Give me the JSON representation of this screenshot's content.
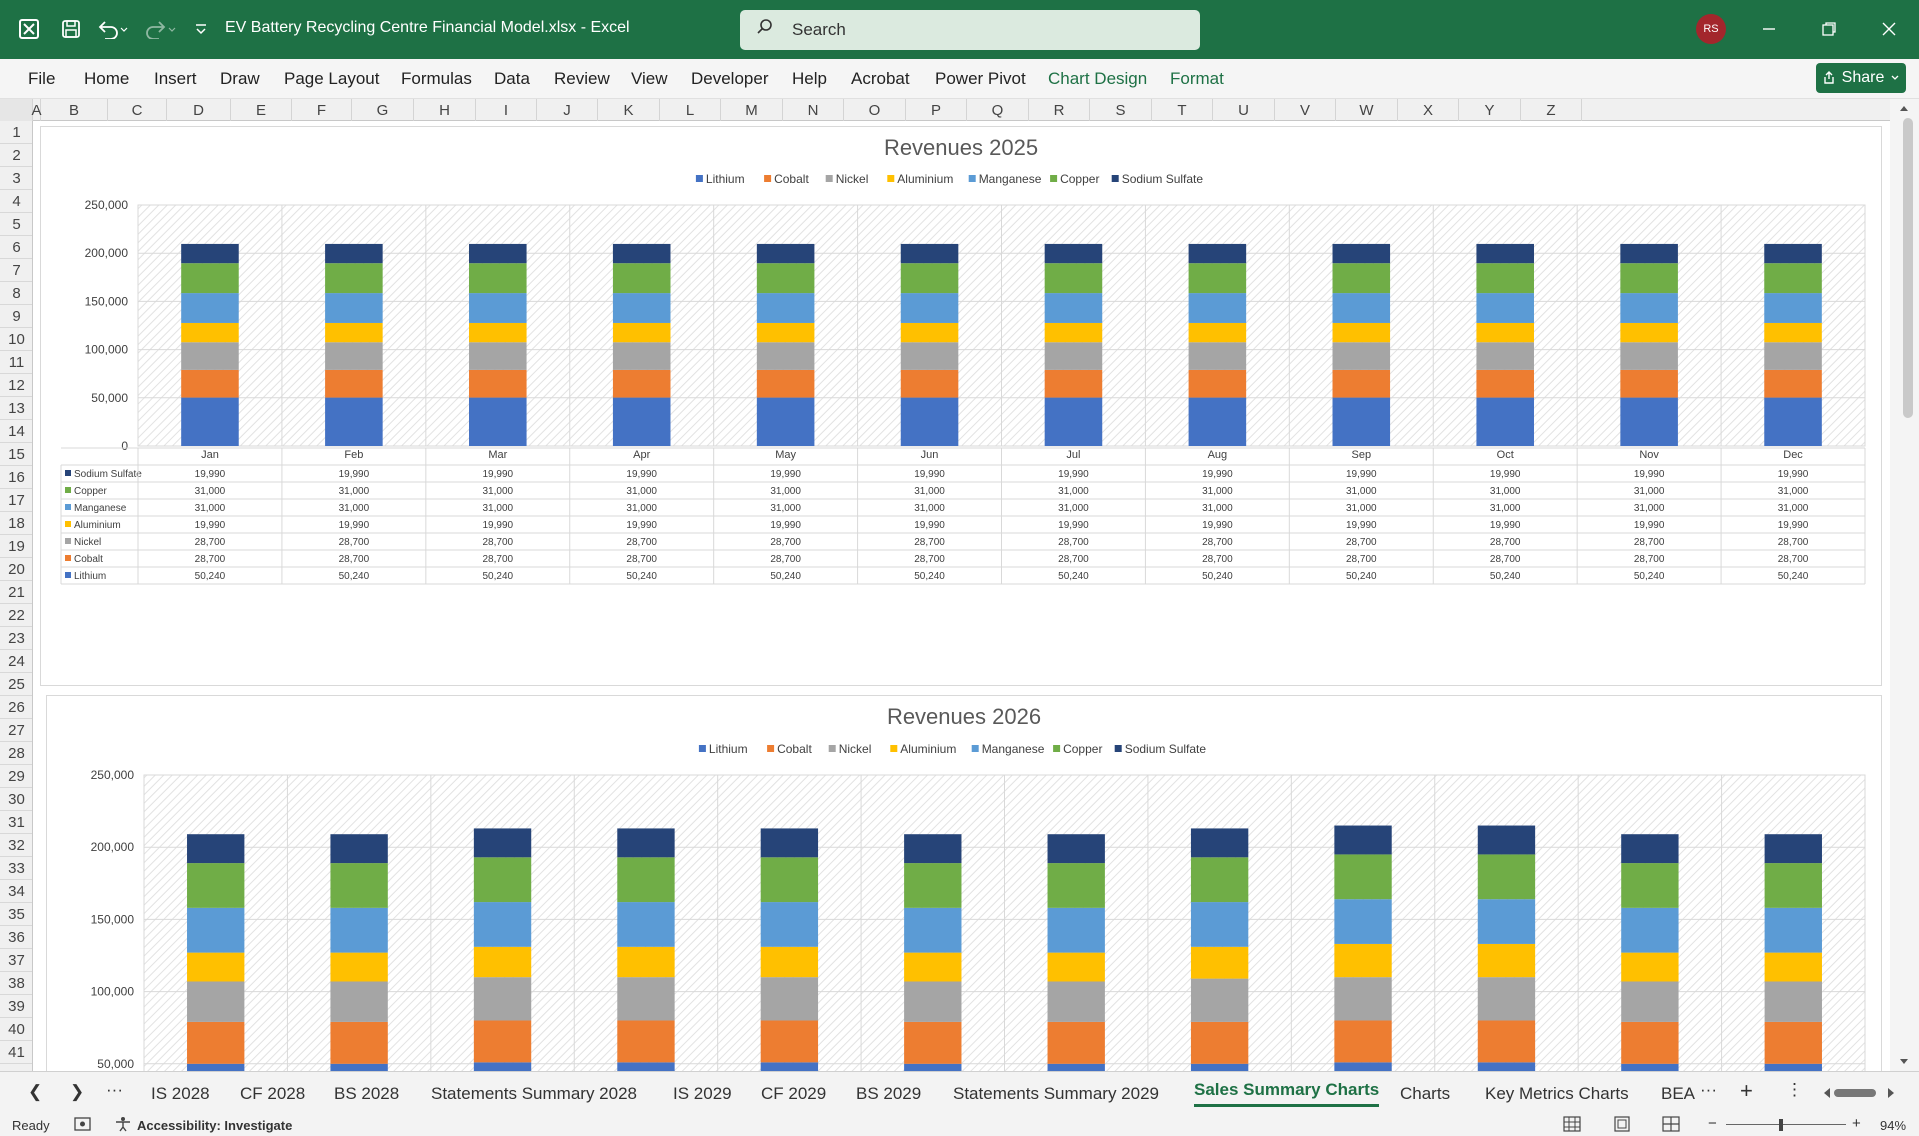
{
  "window": {
    "title": "EV Battery Recycling Centre Financial Model.xlsx  -  Excel",
    "user_initials": "RS",
    "search_placeholder": "Search"
  },
  "ribbon": {
    "tabs": [
      "File",
      "Home",
      "Insert",
      "Draw",
      "Page Layout",
      "Formulas",
      "Data",
      "Review",
      "View",
      "Developer",
      "Help",
      "Acrobat",
      "Power Pivot",
      "Chart Design",
      "Format"
    ],
    "share_label": "Share"
  },
  "columns": [
    "A",
    "B",
    "C",
    "D",
    "E",
    "F",
    "G",
    "H",
    "I",
    "J",
    "K",
    "L",
    "M",
    "N",
    "O",
    "P",
    "Q",
    "R",
    "S",
    "T",
    "U",
    "V",
    "W",
    "X",
    "Y",
    "Z"
  ],
  "rows": [
    "1",
    "2",
    "3",
    "4",
    "5",
    "6",
    "7",
    "8",
    "9",
    "10",
    "11",
    "12",
    "13",
    "14",
    "15",
    "16",
    "17",
    "18",
    "19",
    "20",
    "21",
    "22",
    "23",
    "24",
    "25",
    "26",
    "27",
    "28",
    "29",
    "30",
    "31",
    "32",
    "33",
    "34",
    "35",
    "36",
    "37",
    "38",
    "39",
    "40",
    "41"
  ],
  "colors": {
    "Lithium": "#4472c4",
    "Cobalt": "#ed7d31",
    "Nickel": "#a5a5a5",
    "Aluminium": "#ffc000",
    "Manganese": "#5b9bd5",
    "Copper": "#70ad47",
    "Sodium Sulfate": "#264478",
    "excel_green": "#1e7145"
  },
  "chart_data": [
    {
      "type": "bar",
      "stacked": true,
      "title": "Revenues 2025",
      "categories": [
        "Jan",
        "Feb",
        "Mar",
        "Apr",
        "May",
        "Jun",
        "Jul",
        "Aug",
        "Sep",
        "Oct",
        "Nov",
        "Dec"
      ],
      "series": [
        {
          "name": "Lithium",
          "values": [
            50240,
            50240,
            50240,
            50240,
            50240,
            50240,
            50240,
            50240,
            50240,
            50240,
            50240,
            50240
          ]
        },
        {
          "name": "Cobalt",
          "values": [
            28700,
            28700,
            28700,
            28700,
            28700,
            28700,
            28700,
            28700,
            28700,
            28700,
            28700,
            28700
          ]
        },
        {
          "name": "Nickel",
          "values": [
            28700,
            28700,
            28700,
            28700,
            28700,
            28700,
            28700,
            28700,
            28700,
            28700,
            28700,
            28700
          ]
        },
        {
          "name": "Aluminium",
          "values": [
            19990,
            19990,
            19990,
            19990,
            19990,
            19990,
            19990,
            19990,
            19990,
            19990,
            19990,
            19990
          ]
        },
        {
          "name": "Manganese",
          "values": [
            31000,
            31000,
            31000,
            31000,
            31000,
            31000,
            31000,
            31000,
            31000,
            31000,
            31000,
            31000
          ]
        },
        {
          "name": "Copper",
          "values": [
            31000,
            31000,
            31000,
            31000,
            31000,
            31000,
            31000,
            31000,
            31000,
            31000,
            31000,
            31000
          ]
        },
        {
          "name": "Sodium Sulfate",
          "values": [
            19990,
            19990,
            19990,
            19990,
            19990,
            19990,
            19990,
            19990,
            19990,
            19990,
            19990,
            19990
          ]
        }
      ],
      "ylim": [
        0,
        250000
      ],
      "yticks": [
        "0",
        "50,000",
        "100,000",
        "150,000",
        "200,000",
        "250,000"
      ],
      "legend": "top",
      "data_table": true,
      "table_rows": [
        {
          "name": "Sodium Sulfate",
          "values": [
            "19,990",
            "19,990",
            "19,990",
            "19,990",
            "19,990",
            "19,990",
            "19,990",
            "19,990",
            "19,990",
            "19,990",
            "19,990",
            "19,990"
          ]
        },
        {
          "name": "Copper",
          "values": [
            "31,000",
            "31,000",
            "31,000",
            "31,000",
            "31,000",
            "31,000",
            "31,000",
            "31,000",
            "31,000",
            "31,000",
            "31,000",
            "31,000"
          ]
        },
        {
          "name": "Manganese",
          "values": [
            "31,000",
            "31,000",
            "31,000",
            "31,000",
            "31,000",
            "31,000",
            "31,000",
            "31,000",
            "31,000",
            "31,000",
            "31,000",
            "31,000"
          ]
        },
        {
          "name": "Aluminium",
          "values": [
            "19,990",
            "19,990",
            "19,990",
            "19,990",
            "19,990",
            "19,990",
            "19,990",
            "19,990",
            "19,990",
            "19,990",
            "19,990",
            "19,990"
          ]
        },
        {
          "name": "Nickel",
          "values": [
            "28,700",
            "28,700",
            "28,700",
            "28,700",
            "28,700",
            "28,700",
            "28,700",
            "28,700",
            "28,700",
            "28,700",
            "28,700",
            "28,700"
          ]
        },
        {
          "name": "Cobalt",
          "values": [
            "28,700",
            "28,700",
            "28,700",
            "28,700",
            "28,700",
            "28,700",
            "28,700",
            "28,700",
            "28,700",
            "28,700",
            "28,700",
            "28,700"
          ]
        },
        {
          "name": "Lithium",
          "values": [
            "50,240",
            "50,240",
            "50,240",
            "50,240",
            "50,240",
            "50,240",
            "50,240",
            "50,240",
            "50,240",
            "50,240",
            "50,240",
            "50,240"
          ]
        }
      ]
    },
    {
      "type": "bar",
      "stacked": true,
      "title": "Revenues 2026",
      "categories": [
        "",
        "",
        "",
        "",
        "",
        "",
        "",
        "",
        "",
        "",
        "",
        ""
      ],
      "series": [
        {
          "name": "Lithium",
          "values": [
            50000,
            50000,
            51000,
            51000,
            51000,
            50000,
            50000,
            50000,
            51000,
            51000,
            50000,
            50000
          ]
        },
        {
          "name": "Cobalt",
          "values": [
            29000,
            29000,
            29000,
            29000,
            29000,
            29000,
            29000,
            29000,
            29000,
            29000,
            29000,
            29000
          ]
        },
        {
          "name": "Nickel",
          "values": [
            28000,
            28000,
            30000,
            30000,
            30000,
            28000,
            28000,
            30000,
            30000,
            30000,
            28000,
            28000
          ]
        },
        {
          "name": "Aluminium",
          "values": [
            20000,
            20000,
            21000,
            21000,
            21000,
            20000,
            20000,
            22000,
            23000,
            23000,
            20000,
            20000
          ]
        },
        {
          "name": "Manganese",
          "values": [
            31000,
            31000,
            31000,
            31000,
            31000,
            31000,
            31000,
            31000,
            31000,
            31000,
            31000,
            31000
          ]
        },
        {
          "name": "Copper",
          "values": [
            31000,
            31000,
            31000,
            31000,
            31000,
            31000,
            31000,
            31000,
            31000,
            31000,
            31000,
            31000
          ]
        },
        {
          "name": "Sodium Sulfate",
          "values": [
            20000,
            20000,
            20000,
            20000,
            20000,
            20000,
            20000,
            20000,
            20000,
            20000,
            20000,
            20000
          ]
        }
      ],
      "ylim": [
        0,
        250000
      ],
      "yticks": [
        "50,000",
        "100,000",
        "150,000",
        "200,000",
        "250,000"
      ],
      "legend": "top"
    }
  ],
  "sheet_tabs": [
    "IS 2028",
    "CF 2028",
    "BS 2028",
    "Statements Summary 2028",
    "IS 2029",
    "CF 2029",
    "BS 2029",
    "Statements Summary 2029",
    "Sales Summary Charts",
    "Charts",
    "Key Metrics Charts",
    "BEA"
  ],
  "active_sheet": "Sales Summary Charts",
  "status": {
    "ready": "Ready",
    "accessibility": "Accessibility: Investigate",
    "zoom": "94%"
  }
}
